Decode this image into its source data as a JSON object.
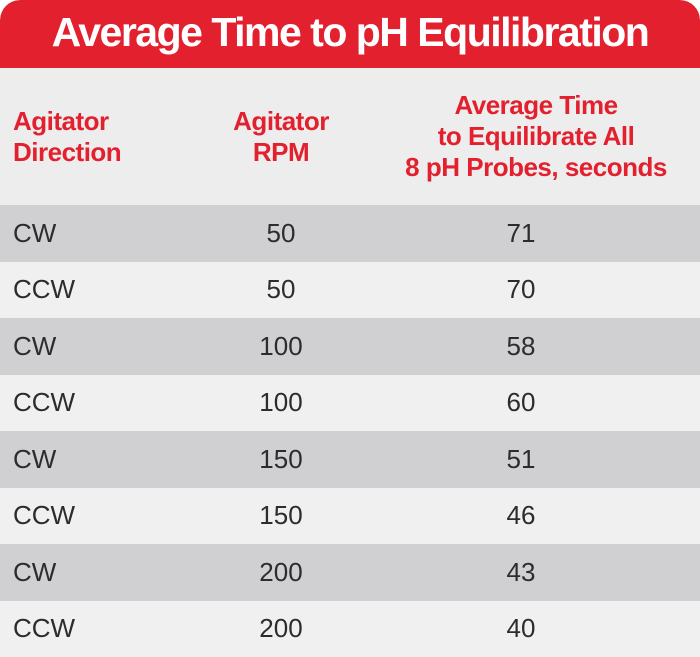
{
  "title": "Average Time to pH Equilibration",
  "colors": {
    "banner_red": "#e2202e",
    "header_text_red": "#e2202e",
    "title_text": "#ffffff",
    "header_bg": "#eeedee",
    "row_dark": "#d0d0d2",
    "row_light": "#f1f0f1",
    "data_text": "#2d2b2e"
  },
  "table": {
    "columns": [
      {
        "label": "Agitator\nDirection"
      },
      {
        "label": "Agitator\nRPM"
      },
      {
        "label": "Average Time\nto Equilibrate All\n8 pH Probes, seconds"
      }
    ],
    "rows": [
      {
        "direction": "CW",
        "rpm": "50",
        "time": "71"
      },
      {
        "direction": "CCW",
        "rpm": "50",
        "time": "70"
      },
      {
        "direction": "CW",
        "rpm": "100",
        "time": "58"
      },
      {
        "direction": "CCW",
        "rpm": "100",
        "time": "60"
      },
      {
        "direction": "CW",
        "rpm": "150",
        "time": "51"
      },
      {
        "direction": "CCW",
        "rpm": "150",
        "time": "46"
      },
      {
        "direction": "CW",
        "rpm": "200",
        "time": "43"
      },
      {
        "direction": "CCW",
        "rpm": "200",
        "time": "40"
      }
    ]
  },
  "chart_data": {
    "type": "table",
    "title": "Average Time to pH Equilibration",
    "columns": [
      "Agitator Direction",
      "Agitator RPM",
      "Average Time to Equilibrate All 8 pH Probes, seconds"
    ],
    "rows": [
      [
        "CW",
        50,
        71
      ],
      [
        "CCW",
        50,
        70
      ],
      [
        "CW",
        100,
        58
      ],
      [
        "CCW",
        100,
        60
      ],
      [
        "CW",
        150,
        51
      ],
      [
        "CCW",
        150,
        46
      ],
      [
        "CW",
        200,
        43
      ],
      [
        "CCW",
        200,
        40
      ]
    ]
  }
}
